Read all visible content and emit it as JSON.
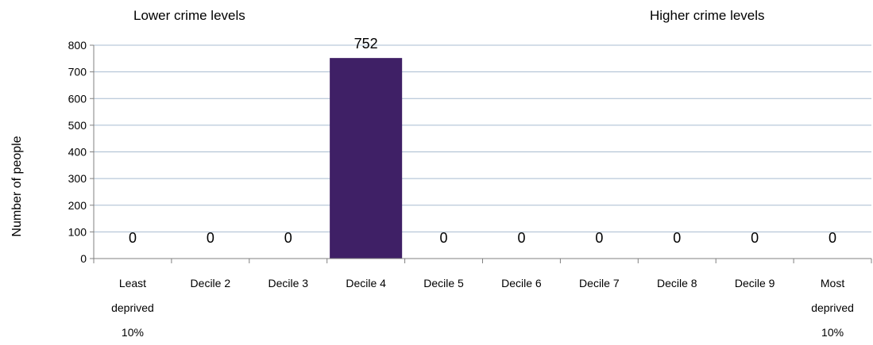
{
  "chart_data": {
    "type": "bar",
    "categories": [
      [
        "Least",
        "deprived",
        "10%"
      ],
      [
        "Decile 2"
      ],
      [
        "Decile 3"
      ],
      [
        "Decile 4"
      ],
      [
        "Decile 5"
      ],
      [
        "Decile 6"
      ],
      [
        "Decile 7"
      ],
      [
        "Decile 8"
      ],
      [
        "Decile 9"
      ],
      [
        "Most",
        "deprived",
        "10%"
      ]
    ],
    "values": [
      0,
      0,
      0,
      752,
      0,
      0,
      0,
      0,
      0,
      0
    ],
    "data_labels": [
      "0",
      "0",
      "0",
      "752",
      "0",
      "0",
      "0",
      "0",
      "0",
      "0"
    ],
    "ylabel": "Number of people",
    "ylim": [
      0,
      800
    ],
    "yticks": [
      0,
      100,
      200,
      300,
      400,
      500,
      600,
      700,
      800
    ],
    "grid": true,
    "bar_color": "#3f2066",
    "grid_color": "#a8bcd0",
    "annotations": {
      "left": "Lower crime levels",
      "right": "Higher crime levels"
    }
  }
}
